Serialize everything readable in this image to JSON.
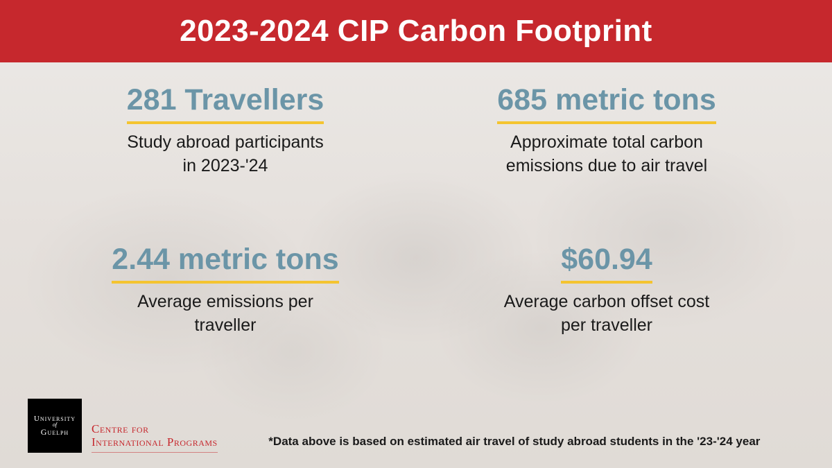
{
  "colors": {
    "header_bg": "#c6282d",
    "header_text": "#ffffff",
    "stat_head": "#6b95a7",
    "underline": "#f4c430",
    "desc_text": "#1a1a1a",
    "logo_text": "#c6282d",
    "footnote": "#1a1a1a"
  },
  "type": "infographic",
  "header": {
    "title": "2023-2024 CIP Carbon Footprint",
    "fontsize": 44
  },
  "stats": [
    {
      "headline": "281 Travellers",
      "desc_line1": "Study abroad participants",
      "desc_line2": "in 2023-'24"
    },
    {
      "headline": "685 metric tons",
      "desc_line1": "Approximate total carbon",
      "desc_line2": "emissions due to air travel"
    },
    {
      "headline": "2.44 metric tons",
      "desc_line1": "Average emissions per",
      "desc_line2": "traveller"
    },
    {
      "headline": "$60.94",
      "desc_line1": "Average carbon offset cost",
      "desc_line2": "per traveller"
    }
  ],
  "stat_style": {
    "head_fontsize": 43,
    "desc_fontsize": 25,
    "underline_width": 4
  },
  "logo": {
    "square_line1": "University",
    "square_line2": "of",
    "square_line3": "Guelph",
    "text_line1": "Centre for",
    "text_line2": "International Programs",
    "text_fontsize": 17
  },
  "footnote": {
    "text": "*Data above is based on estimated air travel of study abroad students in the '23-'24 year",
    "fontsize": 17
  }
}
